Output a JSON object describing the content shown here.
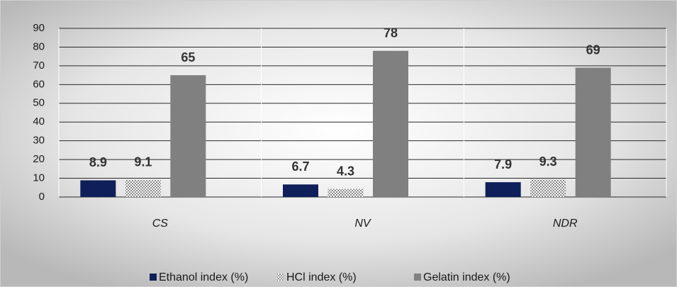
{
  "chart_data": {
    "type": "bar",
    "categories": [
      "CS",
      "NV",
      "NDR"
    ],
    "series": [
      {
        "name": "Ethanol index (%)",
        "color": "#0f1f5a",
        "values": [
          8.9,
          6.7,
          7.9
        ]
      },
      {
        "name": "HCl index (%)",
        "color": "#8a8a8a",
        "pattern": "dots",
        "values": [
          9.1,
          4.3,
          9.3
        ]
      },
      {
        "name": "Gelatin index (%)",
        "color": "#808080",
        "values": [
          65,
          78,
          69
        ]
      }
    ],
    "ylim": [
      0,
      90
    ],
    "yticks": [
      0,
      10,
      20,
      30,
      40,
      50,
      60,
      70,
      80,
      90
    ],
    "grid": true,
    "legend": "bottom",
    "data_labels": true
  }
}
